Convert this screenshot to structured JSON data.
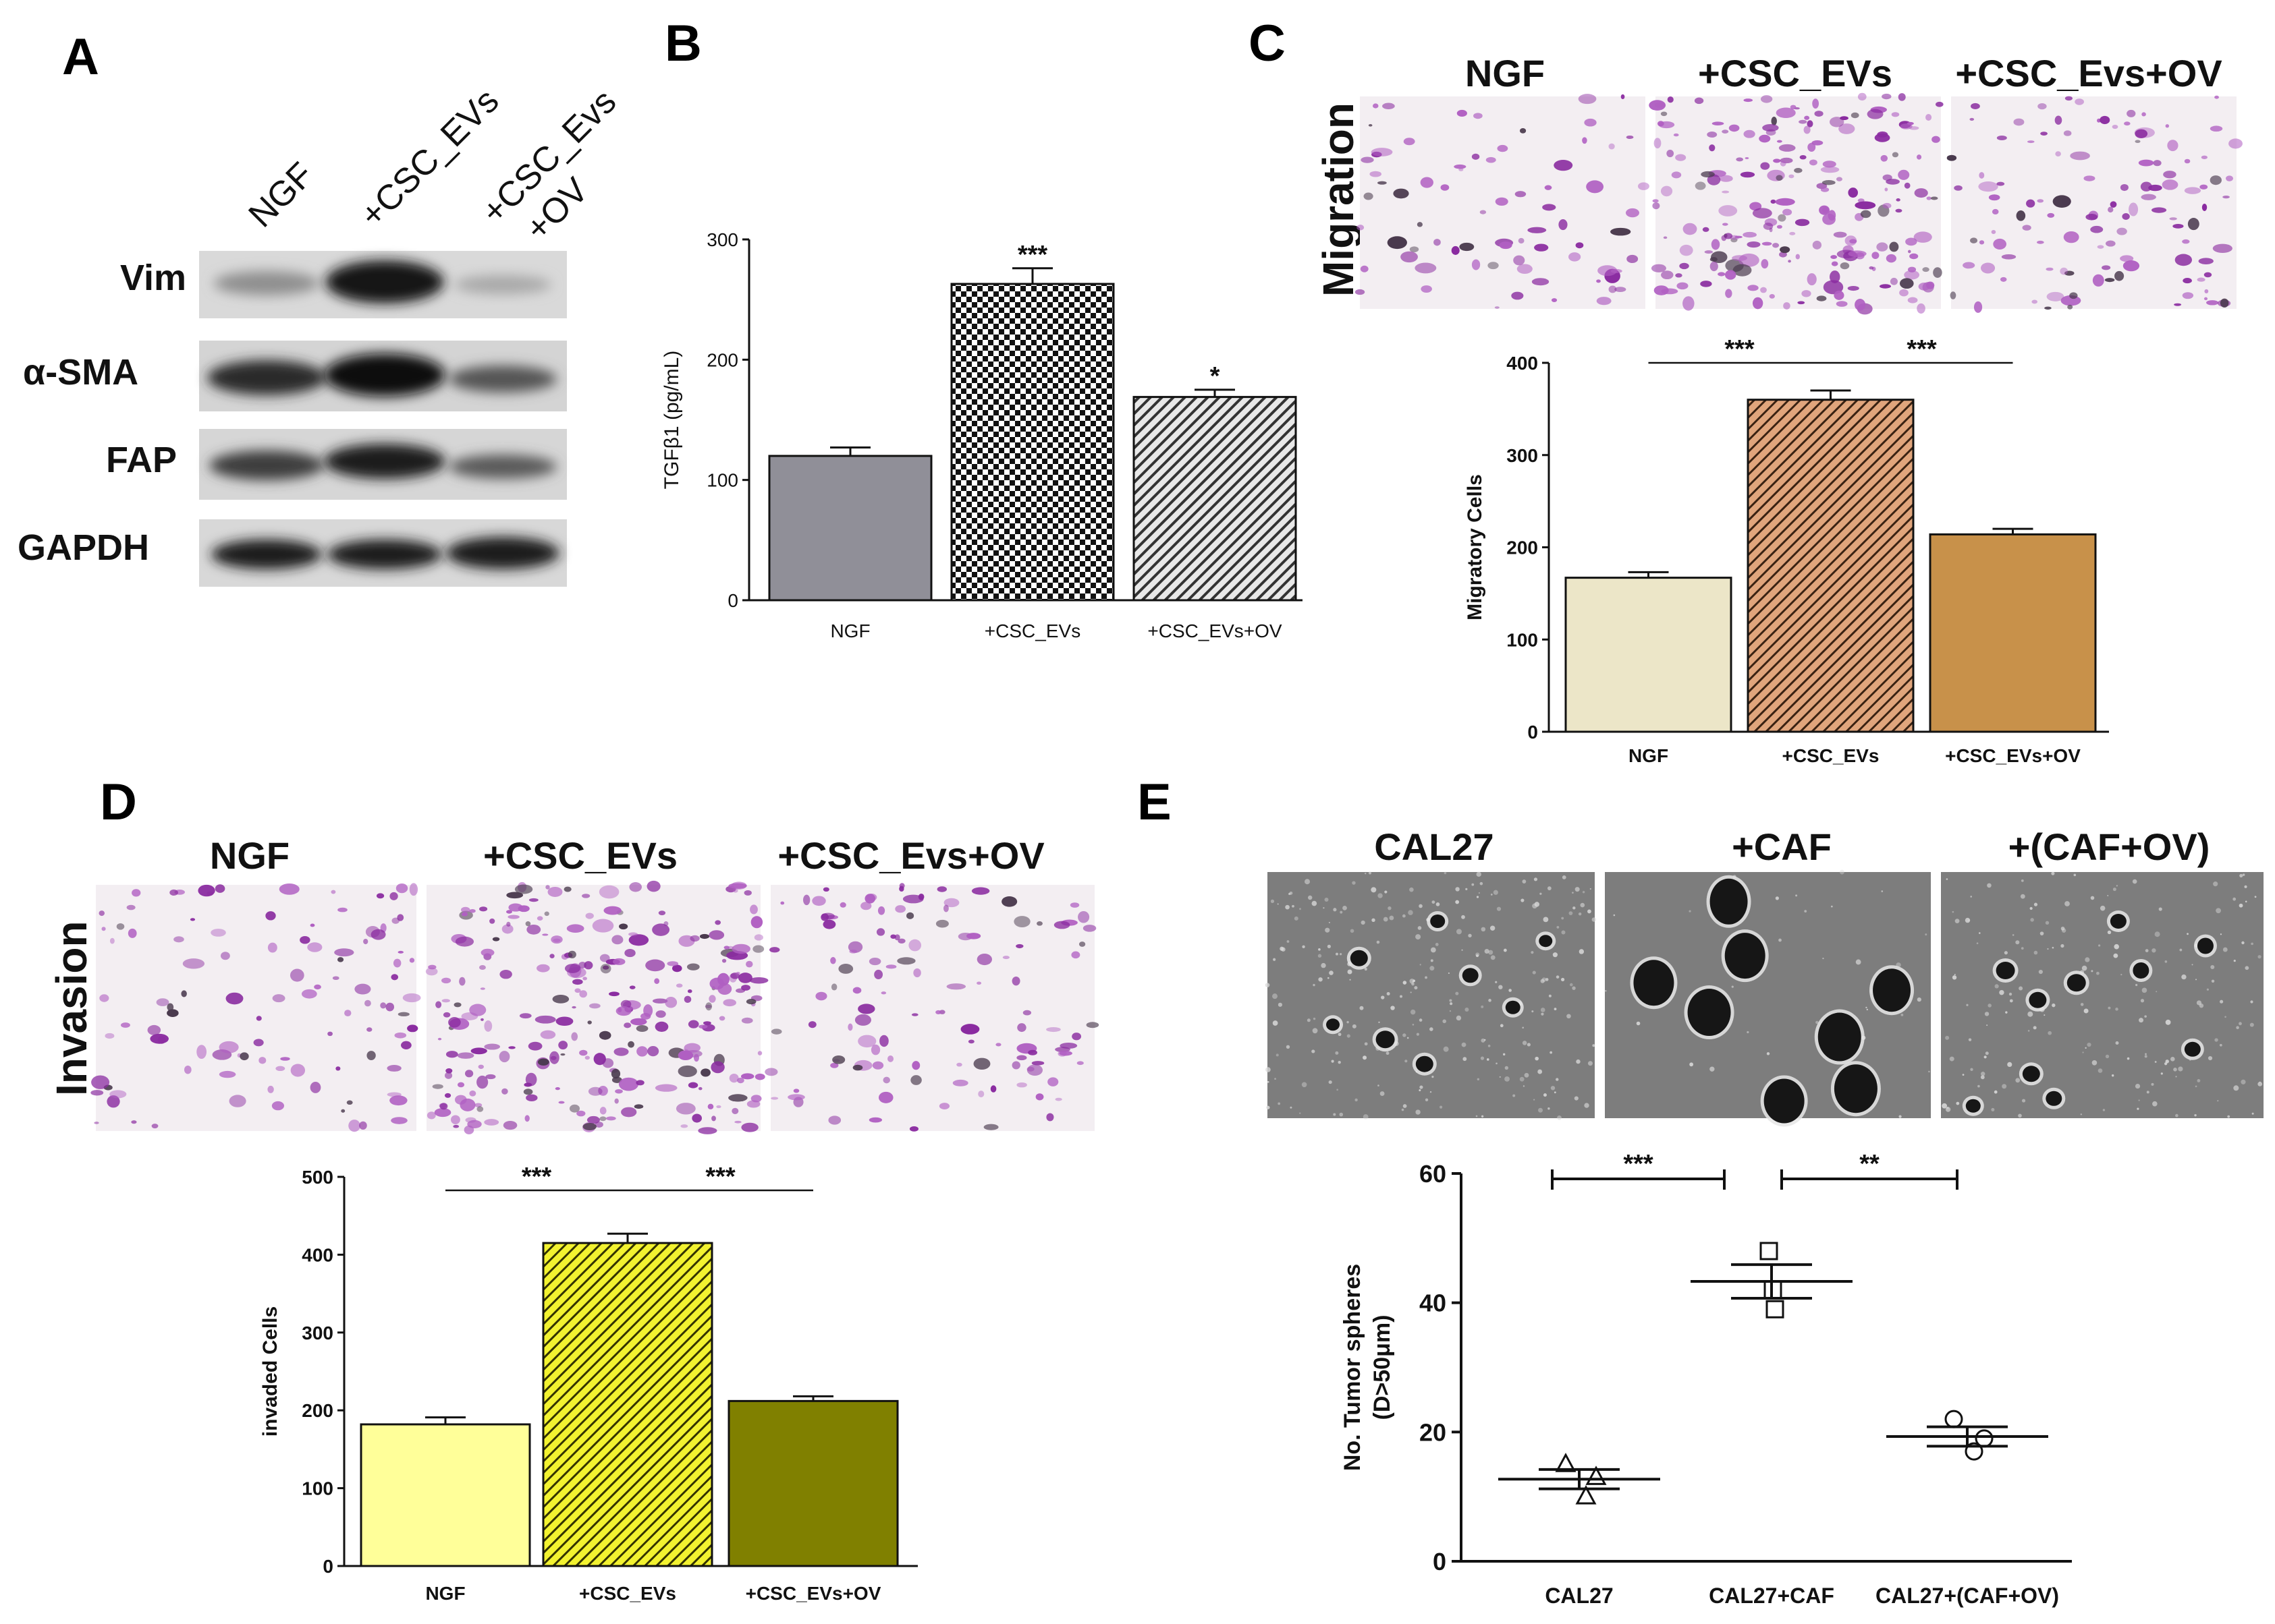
{
  "panels": {
    "A": {
      "letter": "A",
      "columns": [
        "NGF",
        "+CSC_EVs",
        "+CSC_Evs",
        "+OV"
      ],
      "rows": [
        "Vim",
        "α-SMA",
        "FAP",
        "GAPDH"
      ]
    },
    "B": {
      "letter": "B"
    },
    "C": {
      "letter": "C",
      "side_label": "Migration",
      "image_labels": [
        "NGF",
        "+CSC_EVs",
        "+CSC_Evs+OV"
      ]
    },
    "D": {
      "letter": "D",
      "side_label": "Invasion",
      "image_labels": [
        "NGF",
        "+CSC_EVs",
        "+CSC_Evs+OV"
      ]
    },
    "E": {
      "letter": "E",
      "image_labels": [
        "CAL27",
        "+CAF",
        "+(CAF+OV)"
      ]
    }
  },
  "colors": {
    "b_ngf": "#908f98",
    "c_ngf": "#ece6c8",
    "c_evs": "#e0a57c",
    "c_ov": "#c8914a",
    "d_ngf": "#ffff99",
    "d_evs": "#f2f230",
    "d_ov": "#808000",
    "stain": "#8a2ba0",
    "bg_stain": "#f3eef2",
    "spheroid_bg": "#7d7d7d"
  },
  "chart_data": [
    {
      "id": "B",
      "type": "bar",
      "categories": [
        "NGF",
        "+CSC_EVs",
        "+CSC_EVs+OV"
      ],
      "values": [
        120,
        263,
        169
      ],
      "errors": [
        7,
        13,
        6
      ],
      "significance": [
        "",
        "***",
        "*"
      ],
      "ylabel": "TGFβ1 (pg/mL)",
      "ylim": [
        0,
        300
      ],
      "yticks": [
        0,
        100,
        200,
        300
      ]
    },
    {
      "id": "C",
      "type": "bar",
      "categories": [
        "NGF",
        "+CSC_EVs",
        "+CSC_EVs+OV"
      ],
      "values": [
        167,
        360,
        214
      ],
      "errors": [
        6,
        10,
        6
      ],
      "comparisons": [
        {
          "from": 0,
          "to": 1,
          "label": "***"
        },
        {
          "from": 1,
          "to": 2,
          "label": "***"
        }
      ],
      "ylabel": "Migratory Cells",
      "ylim": [
        0,
        400
      ],
      "yticks": [
        0,
        100,
        200,
        300,
        400
      ]
    },
    {
      "id": "D",
      "type": "bar",
      "categories": [
        "NGF",
        "+CSC_EVs",
        "+CSC_EVs+OV"
      ],
      "values": [
        182,
        415,
        212
      ],
      "errors": [
        9,
        12,
        6
      ],
      "comparisons": [
        {
          "from": 0,
          "to": 1,
          "label": "***"
        },
        {
          "from": 1,
          "to": 2,
          "label": "***"
        }
      ],
      "ylabel": "invaded Cells",
      "ylim": [
        0,
        500
      ],
      "yticks": [
        0,
        100,
        200,
        300,
        400,
        500
      ]
    },
    {
      "id": "E",
      "type": "scatter",
      "categories": [
        "CAL27",
        "CAL27+CAF",
        "CAL27+(CAF+OV)"
      ],
      "points": [
        [
          15,
          10,
          13
        ],
        [
          48,
          42,
          39
        ],
        [
          22,
          17,
          19
        ]
      ],
      "means": [
        12.7,
        43.3,
        19.3
      ],
      "sems": [
        1.5,
        2.6,
        1.5
      ],
      "markers": [
        "triangle",
        "square",
        "circle"
      ],
      "comparisons": [
        {
          "from": 0,
          "to": 1,
          "label": "***"
        },
        {
          "from": 1,
          "to": 2,
          "label": "**"
        }
      ],
      "ylabel_lines": [
        "No. Tumor spheres",
        "(D>50μm)"
      ],
      "ylim": [
        0,
        60
      ],
      "yticks": [
        0,
        20,
        40,
        60
      ]
    }
  ]
}
